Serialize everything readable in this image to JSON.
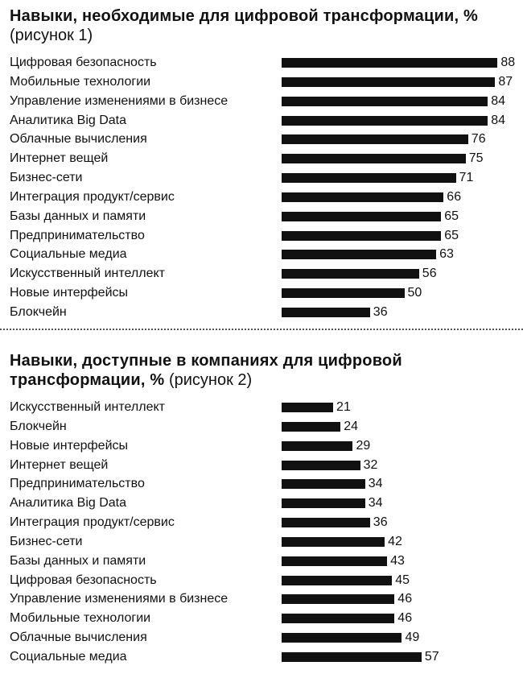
{
  "chart_data": [
    {
      "type": "bar",
      "orientation": "horizontal",
      "title": "Навыки, необходимые для цифровой трансформации, %",
      "subtitle": "(рисунок 1)",
      "categories": [
        "Цифровая безопасность",
        "Мобильные технологии",
        "Управление изменениями в бизнесе",
        "Аналитика Big Data",
        "Облачные вычисления",
        "Интернет вещей",
        "Бизнес-сети",
        "Интеграция продукт/сервис",
        "Базы данных и памяти",
        "Предпринимательство",
        "Социальные медиа",
        "Искусственный интеллект",
        "Новые интерфейсы",
        "Блокчейн"
      ],
      "values": [
        88,
        87,
        84,
        84,
        76,
        75,
        71,
        66,
        65,
        65,
        63,
        56,
        50,
        36
      ],
      "bar_color": "#111111"
    },
    {
      "type": "bar",
      "orientation": "horizontal",
      "title": "Навыки, доступные в компаниях для цифровой трансформации, %",
      "subtitle": "(рисунок 2)",
      "categories": [
        "Искусственный интеллект",
        "Блокчейн",
        "Новые интерфейсы",
        "Интернет вещей",
        "Предпринимательство",
        "Аналитика Big Data",
        "Интеграция продукт/сервис",
        "Бизнес-сети",
        "Базы данных и памяти",
        "Цифровая безопасность",
        "Управление изменениями в бизнесе",
        "Мобильные технологии",
        "Облачные вычисления",
        "Социальные медиа"
      ],
      "values": [
        21,
        24,
        29,
        32,
        34,
        34,
        36,
        42,
        43,
        45,
        46,
        46,
        49,
        57
      ],
      "bar_color": "#111111"
    }
  ]
}
